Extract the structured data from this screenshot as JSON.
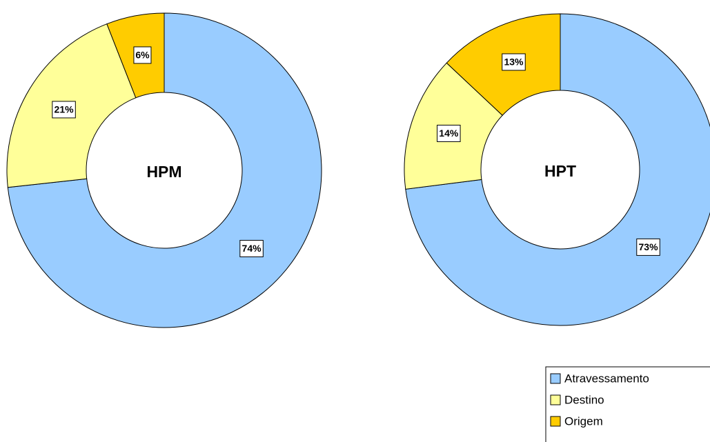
{
  "chart_data": [
    {
      "type": "donut",
      "title": "HPM",
      "categories": [
        "Atravessamento",
        "Destino",
        "Origem"
      ],
      "values": [
        74,
        21,
        6
      ],
      "value_labels": [
        "74%",
        "21%",
        "6%"
      ],
      "colors": [
        "#99ccff",
        "#ffff99",
        "#ffcc00"
      ],
      "legend": "bottom-right"
    },
    {
      "type": "donut",
      "title": "HPT",
      "categories": [
        "Atravessamento",
        "Destino",
        "Origem"
      ],
      "values": [
        73,
        14,
        13
      ],
      "value_labels": [
        "73%",
        "14%",
        "13%"
      ],
      "colors": [
        "#99ccff",
        "#ffff99",
        "#ffcc00"
      ],
      "legend": "bottom-right"
    }
  ]
}
